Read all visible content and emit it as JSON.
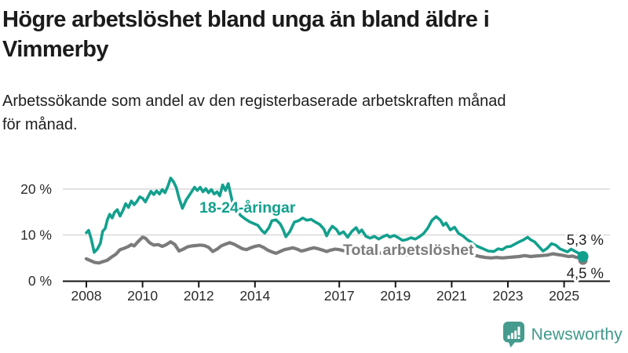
{
  "header": {
    "title_lines": [
      "Högre arbetslöshet bland unga än bland äldre i",
      "Vimmerby"
    ],
    "subtitle_lines": [
      "Arbetssökande som andel av den registerbaserade arbetskraften månad",
      "för månad."
    ]
  },
  "chart_data": {
    "type": "line",
    "title": "Högre arbetslöshet bland unga än bland äldre i Vimmerby",
    "subtitle": "Arbetssökande som andel av den registerbaserade arbetskraften månad för månad.",
    "xlabel": "",
    "ylabel": "",
    "unit": "%",
    "xlim": [
      2007.15,
      2026.7
    ],
    "ylim": [
      0,
      24
    ],
    "grid": "horizontal",
    "y_ticks": [
      {
        "label": "0 %",
        "value": 0
      },
      {
        "label": "10 %",
        "value": 10
      },
      {
        "label": "20 %",
        "value": 20
      }
    ],
    "x_ticks": [
      {
        "label": "2008",
        "value": 2008
      },
      {
        "label": "2010",
        "value": 2010
      },
      {
        "label": "2012",
        "value": 2012
      },
      {
        "label": "2014",
        "value": 2014
      },
      {
        "label": "2017",
        "value": 2017
      },
      {
        "label": "2019",
        "value": 2019
      },
      {
        "label": "2021",
        "value": 2021
      },
      {
        "label": "2023",
        "value": 2023
      },
      {
        "label": "2025",
        "value": 2025
      }
    ],
    "series": [
      {
        "id": "youth",
        "name": "18-24-åringar",
        "color": "#12a08d",
        "end_label": "5,3 %",
        "end_value": 5.3,
        "points": [
          [
            2008.0,
            10.5
          ],
          [
            2008.08,
            11.0
          ],
          [
            2008.17,
            9.2
          ],
          [
            2008.28,
            6.2
          ],
          [
            2008.4,
            7.0
          ],
          [
            2008.5,
            8.2
          ],
          [
            2008.58,
            10.8
          ],
          [
            2008.67,
            11.4
          ],
          [
            2008.75,
            13.3
          ],
          [
            2008.83,
            14.5
          ],
          [
            2008.92,
            13.7
          ],
          [
            2009.0,
            14.9
          ],
          [
            2009.1,
            15.5
          ],
          [
            2009.2,
            14.1
          ],
          [
            2009.3,
            15.3
          ],
          [
            2009.4,
            16.8
          ],
          [
            2009.5,
            16.0
          ],
          [
            2009.6,
            17.4
          ],
          [
            2009.7,
            16.6
          ],
          [
            2009.8,
            17.3
          ],
          [
            2009.9,
            18.3
          ],
          [
            2010.0,
            18.0
          ],
          [
            2010.1,
            17.2
          ],
          [
            2010.2,
            18.4
          ],
          [
            2010.3,
            19.5
          ],
          [
            2010.4,
            18.8
          ],
          [
            2010.5,
            19.6
          ],
          [
            2010.6,
            18.9
          ],
          [
            2010.7,
            19.9
          ],
          [
            2010.8,
            19.2
          ],
          [
            2010.9,
            20.6
          ],
          [
            2011.0,
            22.4
          ],
          [
            2011.1,
            21.6
          ],
          [
            2011.2,
            20.3
          ],
          [
            2011.3,
            18.0
          ],
          [
            2011.42,
            15.8
          ],
          [
            2011.55,
            17.6
          ],
          [
            2011.7,
            19.0
          ],
          [
            2011.85,
            20.4
          ],
          [
            2011.95,
            19.7
          ],
          [
            2012.05,
            20.4
          ],
          [
            2012.15,
            19.4
          ],
          [
            2012.25,
            20.1
          ],
          [
            2012.35,
            19.2
          ],
          [
            2012.45,
            19.9
          ],
          [
            2012.55,
            18.9
          ],
          [
            2012.65,
            19.4
          ],
          [
            2012.75,
            18.5
          ],
          [
            2012.85,
            20.9
          ],
          [
            2012.95,
            19.7
          ],
          [
            2013.05,
            21.2
          ],
          [
            2013.2,
            17.1
          ],
          [
            2013.35,
            15.2
          ],
          [
            2013.5,
            14.2
          ],
          [
            2013.65,
            13.5
          ],
          [
            2013.8,
            12.9
          ],
          [
            2013.95,
            12.5
          ],
          [
            2014.1,
            12.1
          ],
          [
            2014.25,
            10.9
          ],
          [
            2014.35,
            10.4
          ],
          [
            2014.5,
            11.6
          ],
          [
            2014.6,
            13.1
          ],
          [
            2014.75,
            13.3
          ],
          [
            2014.9,
            12.4
          ],
          [
            2015.0,
            11.2
          ],
          [
            2015.1,
            9.6
          ],
          [
            2015.25,
            10.8
          ],
          [
            2015.4,
            12.8
          ],
          [
            2015.55,
            13.1
          ],
          [
            2015.7,
            13.7
          ],
          [
            2015.85,
            13.2
          ],
          [
            2016.0,
            13.4
          ],
          [
            2016.15,
            12.8
          ],
          [
            2016.3,
            12.3
          ],
          [
            2016.45,
            11.3
          ],
          [
            2016.55,
            9.8
          ],
          [
            2016.65,
            11.0
          ],
          [
            2016.75,
            11.9
          ],
          [
            2016.9,
            11.2
          ],
          [
            2017.0,
            10.2
          ],
          [
            2017.15,
            10.7
          ],
          [
            2017.3,
            9.5
          ],
          [
            2017.45,
            10.8
          ],
          [
            2017.6,
            11.6
          ],
          [
            2017.7,
            10.5
          ],
          [
            2017.8,
            11.1
          ],
          [
            2017.95,
            9.7
          ],
          [
            2018.1,
            9.3
          ],
          [
            2018.25,
            9.7
          ],
          [
            2018.4,
            9.1
          ],
          [
            2018.55,
            9.6
          ],
          [
            2018.7,
            10.0
          ],
          [
            2018.8,
            9.5
          ],
          [
            2018.95,
            9.9
          ],
          [
            2019.1,
            9.4
          ],
          [
            2019.25,
            8.8
          ],
          [
            2019.4,
            9.0
          ],
          [
            2019.55,
            9.4
          ],
          [
            2019.7,
            9.1
          ],
          [
            2019.85,
            9.6
          ],
          [
            2020.0,
            10.3
          ],
          [
            2020.15,
            11.5
          ],
          [
            2020.3,
            13.2
          ],
          [
            2020.45,
            14.0
          ],
          [
            2020.6,
            13.2
          ],
          [
            2020.7,
            12.1
          ],
          [
            2020.8,
            12.6
          ],
          [
            2020.95,
            11.1
          ],
          [
            2021.1,
            11.7
          ],
          [
            2021.25,
            10.3
          ],
          [
            2021.4,
            9.8
          ],
          [
            2021.55,
            9.0
          ],
          [
            2021.7,
            8.4
          ],
          [
            2021.85,
            7.7
          ],
          [
            2022.0,
            7.3
          ],
          [
            2022.15,
            6.9
          ],
          [
            2022.3,
            6.5
          ],
          [
            2022.5,
            6.4
          ],
          [
            2022.65,
            7.0
          ],
          [
            2022.8,
            6.8
          ],
          [
            2022.95,
            7.4
          ],
          [
            2023.1,
            7.5
          ],
          [
            2023.25,
            8.0
          ],
          [
            2023.4,
            8.5
          ],
          [
            2023.55,
            8.9
          ],
          [
            2023.7,
            9.5
          ],
          [
            2023.8,
            9.0
          ],
          [
            2023.95,
            8.5
          ],
          [
            2024.1,
            7.5
          ],
          [
            2024.25,
            6.5
          ],
          [
            2024.4,
            7.1
          ],
          [
            2024.55,
            8.1
          ],
          [
            2024.7,
            7.8
          ],
          [
            2024.85,
            7.0
          ],
          [
            2025.0,
            6.6
          ],
          [
            2025.12,
            6.3
          ],
          [
            2025.25,
            6.9
          ],
          [
            2025.4,
            6.4
          ],
          [
            2025.55,
            5.9
          ],
          [
            2025.67,
            5.3
          ]
        ]
      },
      {
        "id": "total",
        "name": "Total arbetslöshet",
        "color": "#7b7b7b",
        "end_label": "4,5 %",
        "end_value": 4.5,
        "points": [
          [
            2008.0,
            4.8
          ],
          [
            2008.15,
            4.4
          ],
          [
            2008.3,
            4.0
          ],
          [
            2008.45,
            3.9
          ],
          [
            2008.6,
            4.2
          ],
          [
            2008.75,
            4.5
          ],
          [
            2008.9,
            5.2
          ],
          [
            2009.05,
            5.8
          ],
          [
            2009.2,
            6.8
          ],
          [
            2009.35,
            7.1
          ],
          [
            2009.5,
            7.5
          ],
          [
            2009.6,
            7.9
          ],
          [
            2009.7,
            7.6
          ],
          [
            2009.85,
            8.6
          ],
          [
            2010.0,
            9.5
          ],
          [
            2010.1,
            9.3
          ],
          [
            2010.25,
            8.3
          ],
          [
            2010.4,
            7.8
          ],
          [
            2010.55,
            7.9
          ],
          [
            2010.7,
            7.5
          ],
          [
            2010.85,
            7.9
          ],
          [
            2011.0,
            8.5
          ],
          [
            2011.15,
            7.9
          ],
          [
            2011.3,
            6.5
          ],
          [
            2011.45,
            6.9
          ],
          [
            2011.6,
            7.4
          ],
          [
            2011.75,
            7.6
          ],
          [
            2011.9,
            7.7
          ],
          [
            2012.05,
            7.8
          ],
          [
            2012.2,
            7.7
          ],
          [
            2012.35,
            7.3
          ],
          [
            2012.5,
            6.4
          ],
          [
            2012.65,
            6.9
          ],
          [
            2012.8,
            7.6
          ],
          [
            2012.95,
            8.0
          ],
          [
            2013.1,
            8.3
          ],
          [
            2013.25,
            8.0
          ],
          [
            2013.4,
            7.5
          ],
          [
            2013.55,
            7.0
          ],
          [
            2013.7,
            6.8
          ],
          [
            2013.85,
            7.2
          ],
          [
            2014.0,
            7.5
          ],
          [
            2014.15,
            7.7
          ],
          [
            2014.3,
            7.3
          ],
          [
            2014.45,
            6.7
          ],
          [
            2014.6,
            6.3
          ],
          [
            2014.75,
            6.0
          ],
          [
            2014.9,
            6.4
          ],
          [
            2015.05,
            6.8
          ],
          [
            2015.2,
            7.0
          ],
          [
            2015.35,
            7.2
          ],
          [
            2015.5,
            6.9
          ],
          [
            2015.65,
            6.5
          ],
          [
            2015.8,
            6.7
          ],
          [
            2015.95,
            7.0
          ],
          [
            2016.1,
            7.2
          ],
          [
            2016.25,
            7.0
          ],
          [
            2016.4,
            6.7
          ],
          [
            2016.55,
            6.4
          ],
          [
            2016.7,
            6.7
          ],
          [
            2016.85,
            6.9
          ],
          [
            2017.0,
            6.8
          ],
          [
            2017.2,
            6.5
          ],
          [
            2017.4,
            6.3
          ],
          [
            2017.6,
            6.5
          ],
          [
            2017.8,
            6.4
          ],
          [
            2018.0,
            6.1
          ],
          [
            2018.2,
            5.8
          ],
          [
            2018.4,
            6.0
          ],
          [
            2018.6,
            6.2
          ],
          [
            2018.8,
            5.9
          ],
          [
            2019.0,
            5.7
          ],
          [
            2019.2,
            5.5
          ],
          [
            2019.4,
            5.7
          ],
          [
            2019.6,
            5.9
          ],
          [
            2019.8,
            6.1
          ],
          [
            2020.0,
            6.3
          ],
          [
            2020.2,
            6.8
          ],
          [
            2020.4,
            7.2
          ],
          [
            2020.6,
            7.0
          ],
          [
            2020.8,
            6.8
          ],
          [
            2021.0,
            6.9
          ],
          [
            2021.2,
            6.6
          ],
          [
            2021.4,
            6.3
          ],
          [
            2021.6,
            5.9
          ],
          [
            2021.8,
            5.6
          ],
          [
            2022.0,
            5.3
          ],
          [
            2022.2,
            5.1
          ],
          [
            2022.4,
            5.0
          ],
          [
            2022.6,
            5.1
          ],
          [
            2022.8,
            5.0
          ],
          [
            2023.0,
            5.1
          ],
          [
            2023.2,
            5.2
          ],
          [
            2023.4,
            5.3
          ],
          [
            2023.6,
            5.5
          ],
          [
            2023.8,
            5.3
          ],
          [
            2024.0,
            5.4
          ],
          [
            2024.2,
            5.5
          ],
          [
            2024.4,
            5.6
          ],
          [
            2024.6,
            5.9
          ],
          [
            2024.8,
            5.7
          ],
          [
            2025.0,
            5.5
          ],
          [
            2025.15,
            5.3
          ],
          [
            2025.3,
            5.4
          ],
          [
            2025.45,
            5.1
          ],
          [
            2025.55,
            5.0
          ],
          [
            2025.67,
            4.5
          ]
        ]
      }
    ],
    "legend_position": "inline-labels"
  },
  "branding": {
    "name": "Newsworthy",
    "logo_icon": "bar-chart-speech-bubble-icon"
  },
  "colors": {
    "accent_teal": "#12a08d",
    "total_gray": "#7b7b7b",
    "axis": "#151515",
    "grid": "#d9d9d9",
    "text": "#1b1b1b",
    "brand_teal": "#3f998b"
  }
}
